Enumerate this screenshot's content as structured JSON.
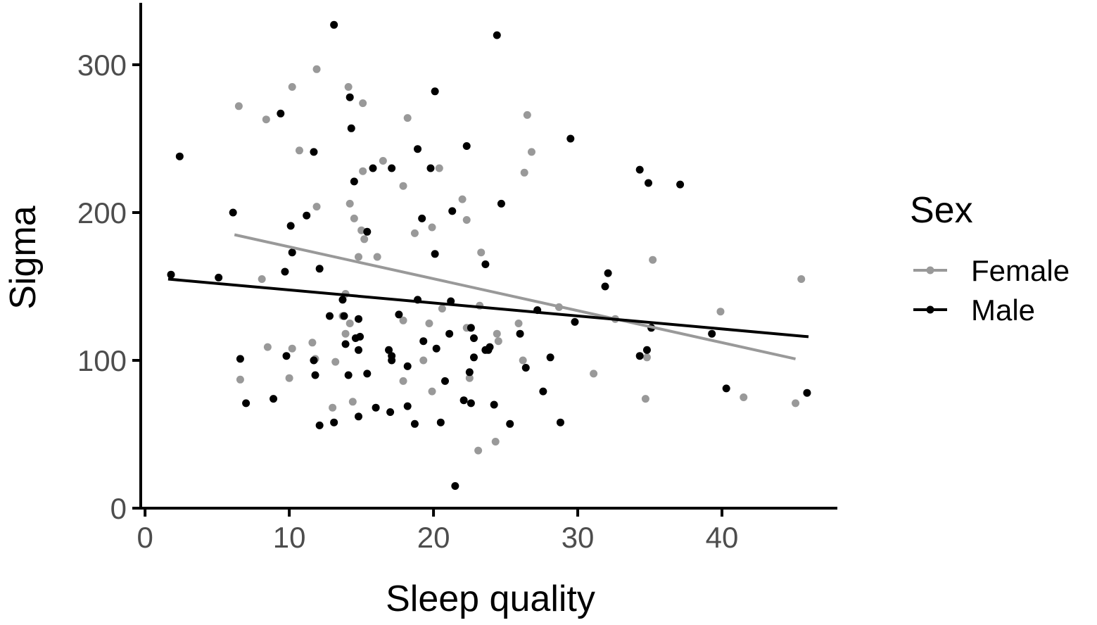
{
  "chart_data": {
    "type": "scatter",
    "xlabel": "Sleep quality",
    "ylabel": "Sigma",
    "xlim": [
      -0.3,
      48
    ],
    "ylim": [
      0,
      340
    ],
    "x_ticks": [
      0,
      10,
      20,
      30,
      40
    ],
    "y_ticks": [
      0,
      100,
      200,
      300
    ],
    "grid": false,
    "legend": {
      "title": "Sex",
      "position": "right"
    },
    "series": [
      {
        "name": "Female",
        "color": "#999999",
        "fit_line": [
          [
            6.2,
            185
          ],
          [
            45.1,
            101
          ]
        ],
        "points": [
          [
            6.5,
            272
          ],
          [
            8.4,
            263
          ],
          [
            10.2,
            285
          ],
          [
            10.7,
            242
          ],
          [
            11.9,
            297
          ],
          [
            14.1,
            285
          ],
          [
            15.1,
            274
          ],
          [
            18.2,
            264
          ],
          [
            11.9,
            204
          ],
          [
            14.2,
            206
          ],
          [
            14.5,
            196
          ],
          [
            15.0,
            188
          ],
          [
            15.2,
            182
          ],
          [
            14.8,
            170
          ],
          [
            16.1,
            170
          ],
          [
            15.1,
            228
          ],
          [
            16.5,
            235
          ],
          [
            17.9,
            218
          ],
          [
            18.7,
            186
          ],
          [
            19.9,
            190
          ],
          [
            20.4,
            230
          ],
          [
            22.0,
            209
          ],
          [
            22.3,
            195
          ],
          [
            23.3,
            173
          ],
          [
            26.3,
            227
          ],
          [
            26.5,
            266
          ],
          [
            26.8,
            241
          ],
          [
            13.9,
            145
          ],
          [
            13.7,
            130
          ],
          [
            13.9,
            118
          ],
          [
            14.2,
            125
          ],
          [
            17.9,
            127
          ],
          [
            19.7,
            125
          ],
          [
            20.6,
            135
          ],
          [
            22.3,
            122
          ],
          [
            22.5,
            88
          ],
          [
            23.2,
            137
          ],
          [
            24.4,
            118
          ],
          [
            24.5,
            113
          ],
          [
            25.9,
            125
          ],
          [
            26.2,
            100
          ],
          [
            28.7,
            136
          ],
          [
            6.6,
            87
          ],
          [
            8.5,
            109
          ],
          [
            10.0,
            88
          ],
          [
            10.2,
            108
          ],
          [
            11.6,
            112
          ],
          [
            11.8,
            101
          ],
          [
            13.2,
            99
          ],
          [
            13.0,
            68
          ],
          [
            14.4,
            72
          ],
          [
            17.9,
            86
          ],
          [
            19.3,
            100
          ],
          [
            19.9,
            79
          ],
          [
            23.1,
            39
          ],
          [
            24.3,
            45
          ],
          [
            31.1,
            91
          ],
          [
            32.6,
            128
          ],
          [
            34.7,
            74
          ],
          [
            34.8,
            102
          ],
          [
            35.2,
            168
          ],
          [
            39.9,
            133
          ],
          [
            41.5,
            75
          ],
          [
            45.1,
            71
          ],
          [
            45.5,
            155
          ],
          [
            8.1,
            155
          ]
        ]
      },
      {
        "name": "Male",
        "color": "#000000",
        "fit_line": [
          [
            1.6,
            155
          ],
          [
            46.0,
            116
          ]
        ],
        "points": [
          [
            2.4,
            238
          ],
          [
            1.8,
            158
          ],
          [
            5.1,
            156
          ],
          [
            6.1,
            200
          ],
          [
            9.4,
            267
          ],
          [
            10.1,
            191
          ],
          [
            10.2,
            173
          ],
          [
            9.7,
            160
          ],
          [
            11.2,
            198
          ],
          [
            11.7,
            241
          ],
          [
            12.1,
            162
          ],
          [
            13.1,
            327
          ],
          [
            14.2,
            278
          ],
          [
            14.3,
            257
          ],
          [
            14.5,
            221
          ],
          [
            15.8,
            230
          ],
          [
            15.4,
            187
          ],
          [
            17.1,
            230
          ],
          [
            18.9,
            243
          ],
          [
            19.2,
            196
          ],
          [
            19.8,
            230
          ],
          [
            20.1,
            282
          ],
          [
            20.1,
            172
          ],
          [
            21.3,
            201
          ],
          [
            22.3,
            245
          ],
          [
            23.6,
            165
          ],
          [
            24.4,
            320
          ],
          [
            24.7,
            206
          ],
          [
            29.5,
            250
          ],
          [
            34.3,
            229
          ],
          [
            34.9,
            220
          ],
          [
            37.1,
            219
          ],
          [
            31.9,
            150
          ],
          [
            32.1,
            159
          ],
          [
            12.8,
            130
          ],
          [
            13.7,
            141
          ],
          [
            13.8,
            130
          ],
          [
            13.9,
            111
          ],
          [
            14.6,
            115
          ],
          [
            14.9,
            116
          ],
          [
            14.8,
            128
          ],
          [
            14.8,
            107
          ],
          [
            16.9,
            107
          ],
          [
            17.1,
            103
          ],
          [
            17.1,
            100
          ],
          [
            17.6,
            131
          ],
          [
            18.9,
            141
          ],
          [
            19.3,
            113
          ],
          [
            20.2,
            108
          ],
          [
            21.1,
            118
          ],
          [
            21.2,
            140
          ],
          [
            22.6,
            122
          ],
          [
            22.8,
            115
          ],
          [
            22.8,
            102
          ],
          [
            23.8,
            107
          ],
          [
            23.9,
            109
          ],
          [
            26.0,
            118
          ],
          [
            26.4,
            95
          ],
          [
            27.2,
            134
          ],
          [
            29.8,
            126
          ],
          [
            28.1,
            102
          ],
          [
            35.1,
            122
          ],
          [
            34.3,
            103
          ],
          [
            34.8,
            107
          ],
          [
            39.3,
            118
          ],
          [
            6.6,
            101
          ],
          [
            7.0,
            71
          ],
          [
            8.9,
            74
          ],
          [
            9.8,
            103
          ],
          [
            11.7,
            100
          ],
          [
            11.8,
            90
          ],
          [
            12.1,
            56
          ],
          [
            13.1,
            58
          ],
          [
            14.1,
            90
          ],
          [
            14.8,
            62
          ],
          [
            15.4,
            91
          ],
          [
            16.0,
            68
          ],
          [
            17.0,
            65
          ],
          [
            18.2,
            96
          ],
          [
            18.2,
            69
          ],
          [
            18.7,
            57
          ],
          [
            20.5,
            58
          ],
          [
            20.8,
            86
          ],
          [
            21.5,
            15
          ],
          [
            22.1,
            73
          ],
          [
            22.5,
            92
          ],
          [
            22.6,
            71
          ],
          [
            24.2,
            70
          ],
          [
            25.3,
            57
          ],
          [
            27.6,
            79
          ],
          [
            28.8,
            58
          ],
          [
            40.3,
            81
          ],
          [
            45.9,
            78
          ],
          [
            23.6,
            107
          ]
        ]
      }
    ]
  }
}
